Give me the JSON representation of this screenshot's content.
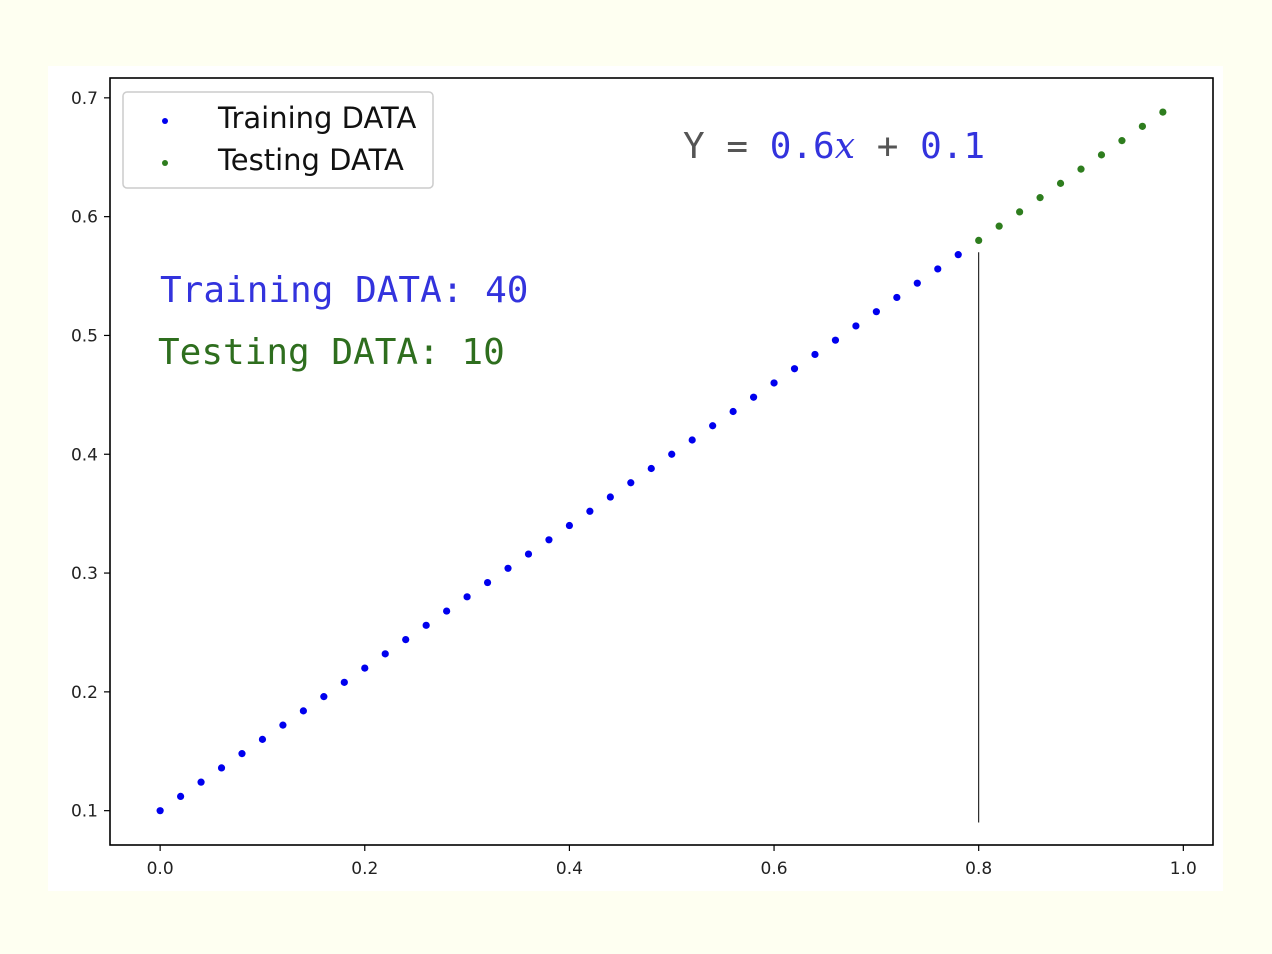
{
  "chart_data": {
    "type": "scatter",
    "xlim": [
      -0.049,
      1.029
    ],
    "ylim": [
      0.0711,
      0.7167
    ],
    "xticks": [
      0.0,
      0.2,
      0.4,
      0.6,
      0.8,
      1.0
    ],
    "xtick_labels": [
      "0.0",
      "0.2",
      "0.4",
      "0.6",
      "0.8",
      "1.0"
    ],
    "yticks": [
      0.1,
      0.2,
      0.3,
      0.4,
      0.5,
      0.6,
      0.7
    ],
    "ytick_labels": [
      "0.1",
      "0.2",
      "0.3",
      "0.4",
      "0.5",
      "0.6",
      "0.7"
    ],
    "grid": false,
    "legend_position": "top-left",
    "series": [
      {
        "name": "Training DATA",
        "color": "#0000ee",
        "x": [
          0.0,
          0.02,
          0.04,
          0.06,
          0.08,
          0.1,
          0.12,
          0.14,
          0.16,
          0.18,
          0.2,
          0.22,
          0.24,
          0.26,
          0.28,
          0.3,
          0.32,
          0.34,
          0.36,
          0.38,
          0.4,
          0.42,
          0.44,
          0.46,
          0.48,
          0.5,
          0.52,
          0.54,
          0.56,
          0.58,
          0.6,
          0.62,
          0.64,
          0.66,
          0.68,
          0.7,
          0.72,
          0.74,
          0.76,
          0.78
        ],
        "y": [
          0.1,
          0.112,
          0.124,
          0.136,
          0.148,
          0.16,
          0.172,
          0.184,
          0.196,
          0.208,
          0.22,
          0.232,
          0.244,
          0.256,
          0.268,
          0.28,
          0.292,
          0.304,
          0.316,
          0.328,
          0.34,
          0.352,
          0.364,
          0.376,
          0.388,
          0.4,
          0.412,
          0.424,
          0.436,
          0.448,
          0.46,
          0.472,
          0.484,
          0.496,
          0.508,
          0.52,
          0.532,
          0.544,
          0.556,
          0.568
        ]
      },
      {
        "name": "Testing DATA",
        "color": "#2e7d1e",
        "x": [
          0.8,
          0.82,
          0.84,
          0.86,
          0.88,
          0.9,
          0.92,
          0.94,
          0.96,
          0.98
        ],
        "y": [
          0.58,
          0.592,
          0.604,
          0.616,
          0.628,
          0.64,
          0.652,
          0.664,
          0.676,
          0.688
        ]
      }
    ],
    "split_line": {
      "x": 0.8,
      "y_from": 0.09,
      "y_to": 0.57,
      "color": "#000000"
    },
    "annotations": {
      "equation": {
        "prefix": "Y = ",
        "slope": "0.6",
        "var": "x",
        "plus": " + ",
        "intercept": "0.1",
        "prefix_color": "#555555",
        "value_color": "#3333dd"
      },
      "train_count": {
        "text": "Training DATA: 40",
        "color": "#3333dd"
      },
      "test_count": {
        "text": "Testing DATA: 10",
        "color": "#2e6e1e"
      }
    }
  }
}
